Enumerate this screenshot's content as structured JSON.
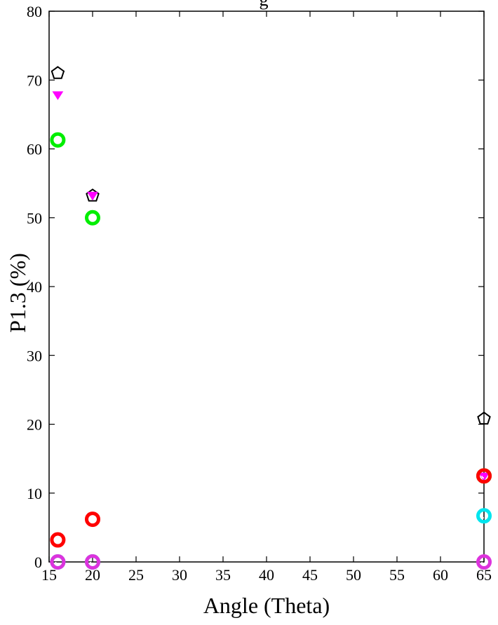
{
  "chart_data": {
    "type": "scatter",
    "title": "g",
    "xlabel": "Angle (Theta)",
    "ylabel": "P1.3 (%)",
    "xlim": [
      15,
      65
    ],
    "ylim": [
      0,
      80
    ],
    "xticks": [
      15,
      20,
      25,
      30,
      35,
      40,
      45,
      50,
      55,
      60,
      65
    ],
    "yticks": [
      0,
      10,
      20,
      30,
      40,
      50,
      60,
      70,
      80
    ],
    "grid": false,
    "legend": "none",
    "series": [
      {
        "marker": "pentagon-open",
        "color": "#000000",
        "x": [
          16,
          20,
          65
        ],
        "y": [
          71,
          53.2,
          20.8
        ]
      },
      {
        "marker": "triangle-down-filled",
        "color": "#ff00ff",
        "x": [
          16,
          20,
          65
        ],
        "y": [
          67.8,
          53.2,
          12.4
        ]
      },
      {
        "marker": "ring",
        "color": "#00ee00",
        "x": [
          16,
          20,
          65
        ],
        "y": [
          61.3,
          50,
          12.5
        ]
      },
      {
        "marker": "ring",
        "color": "#ff0000",
        "x": [
          16,
          20,
          65
        ],
        "y": [
          3.2,
          6.2,
          12.5
        ]
      },
      {
        "marker": "ring",
        "color": "#00e5ee",
        "x": [
          16,
          20,
          65
        ],
        "y": [
          0,
          0,
          6.7
        ]
      },
      {
        "marker": "ring",
        "color": "#dd33dd",
        "x": [
          16,
          20,
          65
        ],
        "y": [
          0,
          0,
          0
        ]
      }
    ]
  }
}
